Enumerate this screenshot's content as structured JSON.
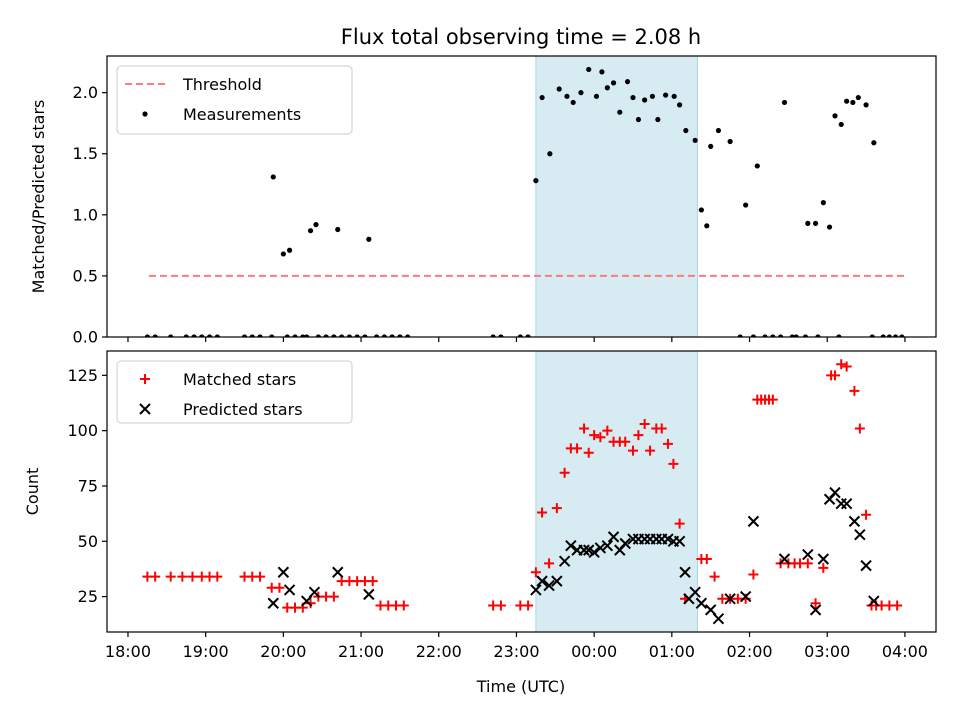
{
  "chart_data": {
    "title": "Flux total observing time = 2.08 h",
    "xlabel": "Time (UTC)",
    "x_unit": "hours after 18:00 UTC",
    "xlim": [
      -0.27,
      10.4
    ],
    "x_ticks": [
      {
        "value": 0,
        "label": "18:00"
      },
      {
        "value": 1,
        "label": "19:00"
      },
      {
        "value": 2,
        "label": "20:00"
      },
      {
        "value": 3,
        "label": "21:00"
      },
      {
        "value": 4,
        "label": "22:00"
      },
      {
        "value": 5,
        "label": "23:00"
      },
      {
        "value": 6,
        "label": "00:00"
      },
      {
        "value": 7,
        "label": "01:00"
      },
      {
        "value": 8,
        "label": "02:00"
      },
      {
        "value": 9,
        "label": "03:00"
      },
      {
        "value": 10,
        "label": "04:00"
      }
    ],
    "observing_window": [
      5.25,
      7.33
    ],
    "panels": [
      {
        "type": "scatter",
        "ylabel": "Matched/Predicted stars",
        "ylim": [
          0,
          2.3
        ],
        "y_ticks": [
          {
            "value": 0,
            "label": "0.0"
          },
          {
            "value": 0.5,
            "label": "0.5"
          },
          {
            "value": 1,
            "label": "1.0"
          },
          {
            "value": 1.5,
            "label": "1.5"
          },
          {
            "value": 2,
            "label": "2.0"
          }
        ],
        "legend": [
          "Threshold",
          "Measurements"
        ],
        "threshold": {
          "name": "Threshold",
          "value": 0.5,
          "x_range": [
            0.27,
            10.0
          ],
          "color": "#ff7a7a"
        },
        "measurements": {
          "name": "Measurements",
          "x": [
            0.25,
            0.35,
            0.55,
            0.75,
            0.85,
            0.95,
            1.05,
            1.15,
            1.5,
            1.6,
            1.7,
            1.85,
            2.05,
            2.15,
            2.25,
            2.3,
            2.45,
            2.55,
            2.65,
            2.75,
            2.85,
            2.95,
            3.05,
            3.2,
            3.3,
            3.4,
            3.5,
            3.6,
            4.7,
            4.8,
            5.05,
            5.15,
            1.87,
            2.0,
            2.08,
            2.35,
            2.42,
            2.7,
            3.1,
            5.25,
            5.33,
            5.43,
            5.55,
            5.65,
            5.73,
            5.83,
            5.93,
            6.03,
            6.1,
            6.17,
            6.25,
            6.33,
            6.43,
            6.5,
            6.57,
            6.65,
            6.75,
            6.82,
            6.92,
            7.03,
            7.1,
            7.18,
            7.3,
            7.38,
            7.5,
            7.6,
            7.75,
            7.95,
            8.1,
            8.45,
            8.75,
            8.85,
            8.95,
            9.03,
            9.1,
            9.18,
            9.25,
            9.33,
            9.4,
            9.5,
            9.6,
            7.45,
            7.88,
            8.05,
            8.2,
            8.3,
            8.4,
            8.55,
            8.6,
            8.72,
            8.88,
            9.15,
            9.58,
            9.72,
            9.8,
            9.88,
            9.96
          ],
          "y": [
            0,
            0,
            0,
            0,
            0,
            0,
            0,
            0,
            0,
            0,
            0,
            0,
            0,
            0,
            0,
            0,
            0,
            0,
            0,
            0,
            0,
            0,
            0,
            0,
            0,
            0,
            0,
            0,
            0,
            0,
            0,
            0,
            1.31,
            0.68,
            0.71,
            0.87,
            0.92,
            0.88,
            0.8,
            1.28,
            1.96,
            1.5,
            2.03,
            1.97,
            1.92,
            2.0,
            2.19,
            1.97,
            2.17,
            2.04,
            2.08,
            1.84,
            2.09,
            1.96,
            1.78,
            1.94,
            1.97,
            1.78,
            1.98,
            1.97,
            1.9,
            1.69,
            1.61,
            1.04,
            1.56,
            1.69,
            1.6,
            1.08,
            1.4,
            1.92,
            0.93,
            0.93,
            1.1,
            0.9,
            1.81,
            1.74,
            1.93,
            1.92,
            1.96,
            1.9,
            1.59,
            0.91,
            0,
            0,
            0,
            0,
            0,
            0,
            0,
            0,
            0,
            0,
            0,
            0,
            0,
            0,
            0
          ]
        }
      },
      {
        "type": "scatter",
        "ylabel": "Count",
        "ylim": [
          9,
          136
        ],
        "y_ticks": [
          {
            "value": 25,
            "label": "25"
          },
          {
            "value": 50,
            "label": "50"
          },
          {
            "value": 75,
            "label": "75"
          },
          {
            "value": 100,
            "label": "100"
          },
          {
            "value": 125,
            "label": "125"
          }
        ],
        "legend": [
          "Matched stars",
          "Predicted stars"
        ],
        "series": [
          {
            "name": "Matched stars",
            "marker": "+",
            "color": "#ff0000",
            "x": [
              0.25,
              0.35,
              0.55,
              0.7,
              0.83,
              0.95,
              1.05,
              1.15,
              1.5,
              1.6,
              1.7,
              1.85,
              1.95,
              2.05,
              2.15,
              2.25,
              2.35,
              2.45,
              2.55,
              2.65,
              2.75,
              2.85,
              2.95,
              3.05,
              3.15,
              3.25,
              3.35,
              3.45,
              3.55,
              4.7,
              4.8,
              5.05,
              5.15,
              5.25,
              5.33,
              5.42,
              5.52,
              5.62,
              5.7,
              5.78,
              5.87,
              5.93,
              6.0,
              6.08,
              6.17,
              6.25,
              6.33,
              6.4,
              6.5,
              6.57,
              6.65,
              6.72,
              6.8,
              6.87,
              6.95,
              7.02,
              7.1,
              7.17,
              7.38,
              7.45,
              7.55,
              7.65,
              7.75,
              7.85,
              7.95,
              8.05,
              8.1,
              8.15,
              8.2,
              8.25,
              8.3,
              8.4,
              8.5,
              8.58,
              8.65,
              8.75,
              8.85,
              8.95,
              9.05,
              9.1,
              9.18,
              9.25,
              9.35,
              9.42,
              9.5,
              9.57,
              9.63,
              9.7,
              9.8,
              9.9
            ],
            "y": [
              34,
              34,
              34,
              34,
              34,
              34,
              34,
              34,
              34,
              34,
              34,
              29,
              29,
              20,
              20,
              20,
              22,
              25,
              25,
              25,
              32,
              32,
              32,
              32,
              32,
              21,
              21,
              21,
              21,
              21,
              21,
              21,
              21,
              36,
              63,
              40,
              65,
              81,
              92,
              92,
              101,
              90,
              98,
              97,
              100,
              95,
              95,
              95,
              91,
              98,
              103,
              91,
              101,
              101,
              94,
              85,
              58,
              24,
              42,
              42,
              34,
              24,
              24,
              24,
              24,
              35,
              114,
              114,
              114,
              114,
              114,
              40,
              40,
              40,
              40,
              40,
              22,
              38,
              125,
              125,
              130,
              129,
              118,
              101,
              62,
              21,
              21,
              21,
              21,
              21
            ]
          },
          {
            "name": "Predicted stars",
            "marker": "x",
            "color": "#000000",
            "x": [
              1.87,
              2.0,
              2.08,
              2.3,
              2.4,
              2.7,
              3.1,
              5.25,
              5.33,
              5.42,
              5.52,
              5.62,
              5.7,
              5.78,
              5.87,
              5.93,
              6.0,
              6.08,
              6.17,
              6.25,
              6.33,
              6.4,
              6.5,
              6.57,
              6.65,
              6.72,
              6.8,
              6.87,
              6.95,
              7.02,
              7.1,
              7.17,
              7.22,
              7.3,
              7.38,
              7.5,
              7.6,
              7.75,
              7.95,
              8.05,
              8.45,
              8.75,
              8.85,
              8.95,
              9.03,
              9.1,
              9.18,
              9.25,
              9.35,
              9.42,
              9.5,
              9.6
            ],
            "y": [
              22,
              36,
              28,
              23,
              27,
              36,
              26,
              28,
              32,
              30,
              32,
              41,
              48,
              46,
              46,
              46,
              45,
              47,
              48,
              52,
              46,
              49,
              51,
              51,
              51,
              51,
              51,
              51,
              51,
              50,
              50,
              36,
              24,
              27,
              22,
              19,
              15,
              24,
              25,
              59,
              42,
              44,
              19,
              42,
              69,
              72,
              67,
              67,
              59,
              53,
              39,
              23
            ]
          }
        ]
      }
    ]
  }
}
